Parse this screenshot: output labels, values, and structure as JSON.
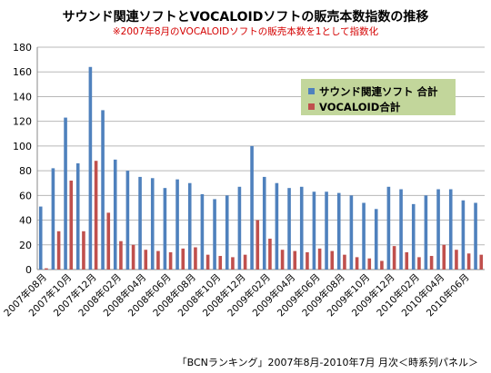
{
  "chart_data": {
    "type": "bar",
    "title": "サウンド関連ソフトとVOCALOIDソフトの販売本数指数の推移",
    "subtitle": "※2007年8月のVOCALOIDソフトの販売本数を1として指数化",
    "source_note": "「BCNランキング」2007年8月-2010年7月 月次＜時系列パネル＞",
    "ylim": [
      0,
      180
    ],
    "yticks": [
      0,
      20,
      40,
      60,
      80,
      100,
      120,
      140,
      160,
      180
    ],
    "grid": true,
    "legend_position": "top-right",
    "categories": [
      "2007年08月",
      "2007年09月",
      "2007年10月",
      "2007年11月",
      "2007年12月",
      "2008年01月",
      "2008年02月",
      "2008年03月",
      "2008年04月",
      "2008年05月",
      "2008年06月",
      "2008年07月",
      "2008年08月",
      "2008年09月",
      "2008年10月",
      "2008年11月",
      "2008年12月",
      "2009年01月",
      "2009年02月",
      "2009年03月",
      "2009年04月",
      "2009年05月",
      "2009年06月",
      "2009年07月",
      "2009年08月",
      "2009年09月",
      "2009年10月",
      "2009年11月",
      "2009年12月",
      "2010年01月",
      "2010年02月",
      "2010年03月",
      "2010年04月",
      "2010年05月",
      "2010年06月",
      "2010年07月"
    ],
    "tick_labels": [
      "2007年08月",
      "",
      "2007年10月",
      "",
      "2007年12月",
      "",
      "2008年02月",
      "",
      "2008年04月",
      "",
      "2008年06月",
      "",
      "2008年08月",
      "",
      "2008年10月",
      "",
      "2008年12月",
      "",
      "2009年02月",
      "",
      "2009年04月",
      "",
      "2009年06月",
      "",
      "2009年08月",
      "",
      "2009年10月",
      "",
      "2009年12月",
      "",
      "2010年02月",
      "",
      "2010年04月",
      "",
      "2010年06月",
      ""
    ],
    "series": [
      {
        "name": "サウンド関連ソフト 合計",
        "color": "#4f81bd",
        "values": [
          51,
          82,
          123,
          86,
          164,
          129,
          89,
          80,
          75,
          74,
          66,
          73,
          70,
          61,
          57,
          60,
          67,
          100,
          75,
          70,
          66,
          67,
          63,
          63,
          62,
          60,
          54,
          49,
          67,
          65,
          53,
          60,
          65,
          65,
          56,
          54
        ]
      },
      {
        "name": "VOCALOID合計",
        "color": "#c0504d",
        "values": [
          1,
          31,
          72,
          31,
          88,
          46,
          23,
          20,
          16,
          15,
          14,
          17,
          18,
          12,
          11,
          10,
          12,
          40,
          25,
          16,
          15,
          14,
          17,
          15,
          12,
          10,
          9,
          7,
          19,
          14,
          10,
          11,
          20,
          16,
          13,
          12
        ]
      }
    ]
  }
}
